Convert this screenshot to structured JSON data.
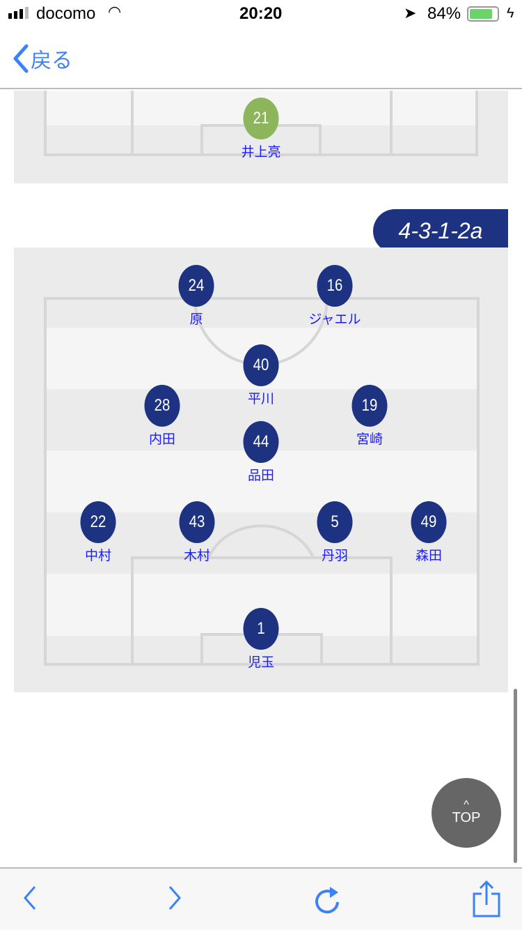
{
  "status": {
    "carrier": "docomo",
    "time": "20:20",
    "battery": "84%"
  },
  "nav": {
    "back_label": "戻る"
  },
  "prev_formation": {
    "players": [
      {
        "number": "21",
        "name": "井上亮"
      }
    ]
  },
  "formation": {
    "name": "4-3-1-2a",
    "players": [
      {
        "number": "24",
        "name": "原"
      },
      {
        "number": "16",
        "name": "ジャエル"
      },
      {
        "number": "40",
        "name": "平川"
      },
      {
        "number": "28",
        "name": "内田"
      },
      {
        "number": "19",
        "name": "宮崎"
      },
      {
        "number": "44",
        "name": "品田"
      },
      {
        "number": "22",
        "name": "中村"
      },
      {
        "number": "43",
        "name": "木村"
      },
      {
        "number": "5",
        "name": "丹羽"
      },
      {
        "number": "49",
        "name": "森田"
      },
      {
        "number": "1",
        "name": "児玉"
      }
    ]
  },
  "top_button": {
    "label": "TOP"
  },
  "colors": {
    "player": "#1e3282",
    "goalkeeper_prev": "#8db55c",
    "link": "#3b82f6"
  }
}
